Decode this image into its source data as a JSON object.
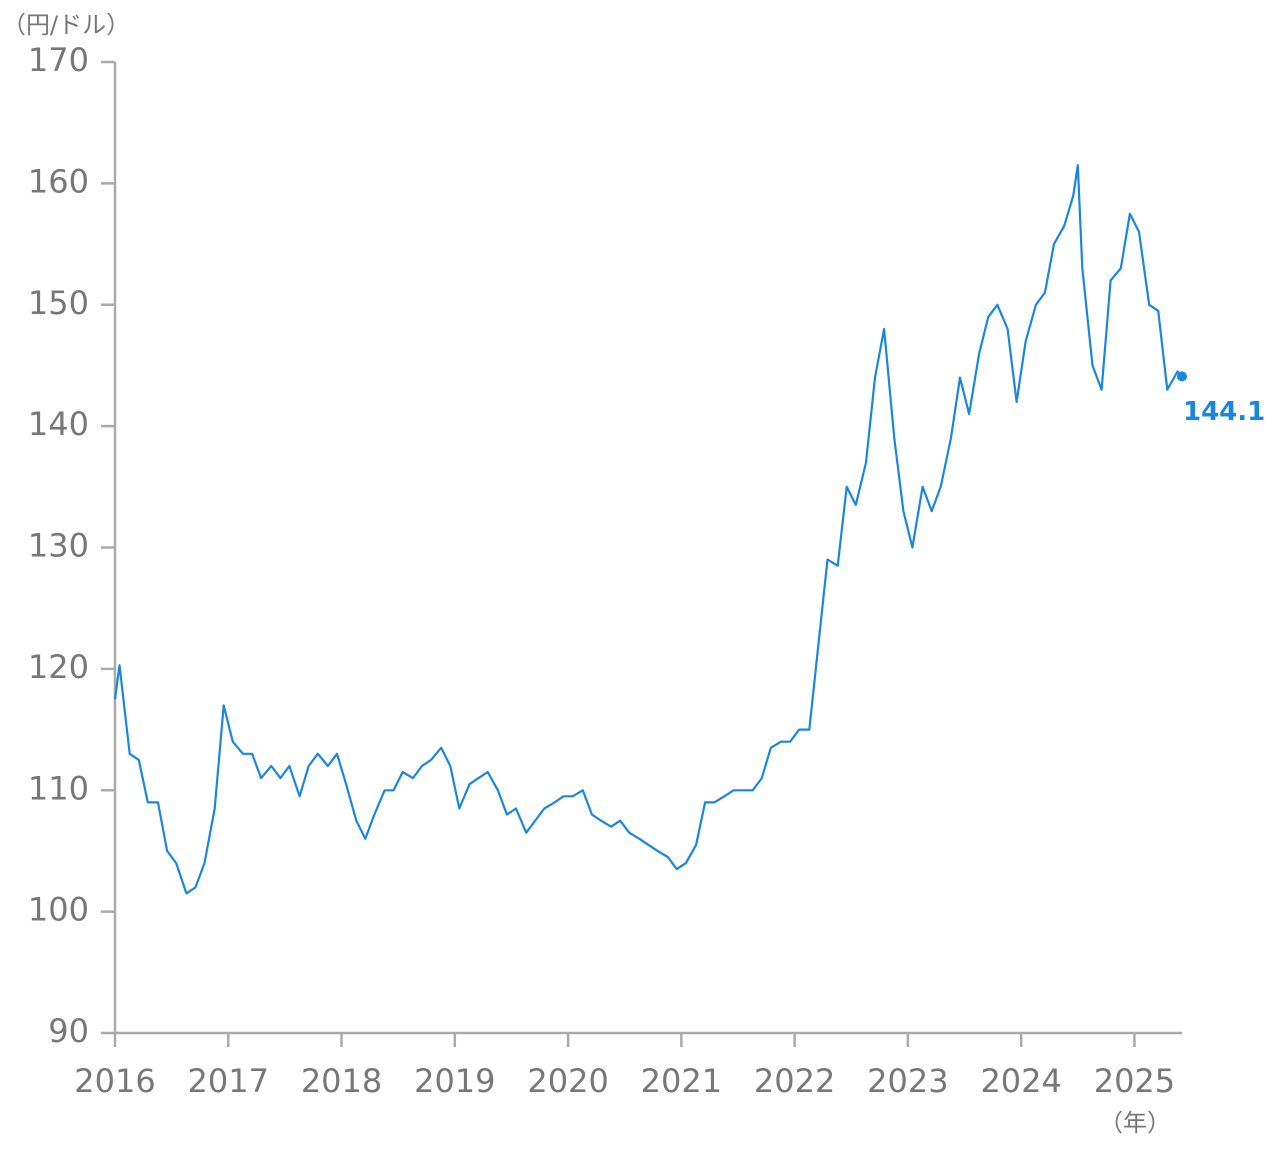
{
  "chart_data": {
    "type": "line",
    "y_label": "（円/ドル）",
    "x_label": "（年）",
    "color": "#1a86e0",
    "xlim": [
      2016,
      2025.42
    ],
    "xticks": [
      2016,
      2017,
      2018,
      2019,
      2020,
      2021,
      2022,
      2023,
      2024,
      2025
    ],
    "ylim": [
      90,
      170
    ],
    "yticks": [
      90,
      100,
      110,
      120,
      130,
      140,
      150,
      160,
      170
    ],
    "grid": false,
    "x": [
      2016.0,
      2016.04,
      2016.13,
      2016.21,
      2016.29,
      2016.38,
      2016.46,
      2016.54,
      2016.63,
      2016.71,
      2016.79,
      2016.88,
      2016.96,
      2017.04,
      2017.13,
      2017.21,
      2017.29,
      2017.38,
      2017.46,
      2017.54,
      2017.63,
      2017.71,
      2017.79,
      2017.88,
      2017.96,
      2018.04,
      2018.13,
      2018.21,
      2018.29,
      2018.38,
      2018.46,
      2018.54,
      2018.63,
      2018.71,
      2018.79,
      2018.88,
      2018.96,
      2019.04,
      2019.13,
      2019.21,
      2019.29,
      2019.38,
      2019.46,
      2019.54,
      2019.63,
      2019.71,
      2019.79,
      2019.88,
      2019.96,
      2020.04,
      2020.13,
      2020.21,
      2020.29,
      2020.38,
      2020.46,
      2020.54,
      2020.63,
      2020.71,
      2020.79,
      2020.88,
      2020.96,
      2021.04,
      2021.13,
      2021.21,
      2021.29,
      2021.38,
      2021.46,
      2021.54,
      2021.63,
      2021.71,
      2021.79,
      2021.88,
      2021.96,
      2022.04,
      2022.13,
      2022.21,
      2022.29,
      2022.38,
      2022.46,
      2022.54,
      2022.63,
      2022.71,
      2022.79,
      2022.88,
      2022.96,
      2023.04,
      2023.13,
      2023.21,
      2023.29,
      2023.38,
      2023.46,
      2023.54,
      2023.63,
      2023.71,
      2023.79,
      2023.88,
      2023.96,
      2024.04,
      2024.13,
      2024.21,
      2024.29,
      2024.38,
      2024.46,
      2024.5,
      2024.54,
      2024.63,
      2024.71,
      2024.79,
      2024.88,
      2024.96,
      2025.04,
      2025.13,
      2025.21,
      2025.29,
      2025.38,
      2025.42
    ],
    "values": [
      117.5,
      120.3,
      113,
      112.5,
      109,
      109,
      105,
      104,
      101.5,
      102,
      104,
      108.5,
      117,
      114,
      113,
      113,
      111,
      112,
      111,
      112,
      109.5,
      112,
      113,
      112,
      113,
      110.5,
      107.5,
      106,
      108,
      110,
      110,
      111.5,
      111,
      112,
      112.5,
      113.5,
      112,
      108.5,
      110.5,
      111,
      111.5,
      110,
      108,
      108.5,
      106.5,
      107.5,
      108.5,
      109,
      109.5,
      109.5,
      110,
      108,
      107.5,
      107,
      107.5,
      106.5,
      106,
      105.5,
      105,
      104.5,
      103.5,
      104,
      105.5,
      109,
      109,
      109.5,
      110,
      110,
      110,
      111,
      113.5,
      114,
      114,
      115,
      115,
      122,
      129,
      128.5,
      135,
      133.5,
      137,
      144,
      148,
      139,
      133,
      130,
      135,
      133,
      135,
      139,
      144,
      141,
      146,
      149,
      150,
      148,
      142,
      147,
      150,
      151,
      155,
      156.5,
      159,
      161.5,
      153,
      145,
      143,
      152,
      153,
      157.5,
      156,
      150,
      149.5,
      143,
      144.5,
      144.1
    ]
  }
}
